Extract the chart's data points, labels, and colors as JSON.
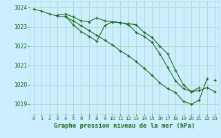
{
  "background_color": "#cceeff",
  "grid_color": "#aaddcc",
  "line_color": "#1a6b1a",
  "text_color": "#1a6b1a",
  "xlabel": "Graphe pression niveau de la mer (hPa)",
  "ylim": [
    1018.5,
    1024.3
  ],
  "xlim": [
    -0.5,
    23.5
  ],
  "yticks": [
    1019,
    1020,
    1021,
    1022,
    1023,
    1024
  ],
  "xticks": [
    0,
    1,
    2,
    3,
    4,
    5,
    6,
    7,
    8,
    9,
    10,
    11,
    12,
    13,
    14,
    15,
    16,
    17,
    18,
    19,
    20,
    21,
    22,
    23
  ],
  "line1": [
    1023.9,
    1023.8,
    1023.65,
    1023.55,
    1023.5,
    1023.3,
    1023.05,
    1022.8,
    1022.55,
    1022.3,
    1022.05,
    1021.75,
    1021.5,
    1021.2,
    1020.85,
    1020.5,
    1020.1,
    1019.8,
    1019.6,
    1019.15,
    1019.0,
    1019.2,
    1020.3,
    null
  ],
  "line2": [
    null,
    null,
    null,
    1023.6,
    1023.65,
    1023.5,
    1023.3,
    1023.25,
    1023.45,
    1023.3,
    1023.25,
    1023.2,
    1023.15,
    1023.1,
    1022.7,
    1022.45,
    1022.0,
    1021.6,
    1020.75,
    1020.0,
    1019.65,
    1019.85,
    null,
    1020.25
  ],
  "line3": [
    null,
    null,
    null,
    null,
    1023.55,
    1023.1,
    1022.75,
    1022.5,
    1022.25,
    1023.05,
    1023.25,
    1023.2,
    1023.1,
    1022.7,
    1022.5,
    1022.2,
    1021.6,
    1020.9,
    1020.2,
    1019.8,
    1019.65,
    1019.7,
    1019.85,
    1019.65
  ]
}
